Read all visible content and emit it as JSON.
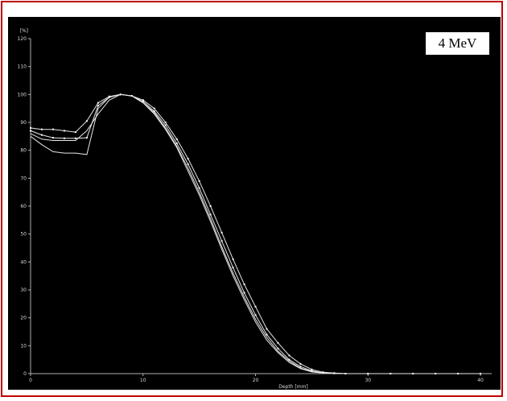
{
  "badge": {
    "label": "4 MeV"
  },
  "chart_data": {
    "type": "line",
    "title": "",
    "xlabel": "Depth [mm]",
    "ylabel": "[%]",
    "xlim": [
      0,
      41
    ],
    "ylim": [
      0,
      120
    ],
    "xticks": [
      0,
      10,
      20,
      30,
      40
    ],
    "yticks": [
      0,
      10,
      20,
      30,
      40,
      50,
      60,
      70,
      80,
      90,
      100,
      110,
      120
    ],
    "grid": false,
    "legend": "none",
    "colors": {
      "background": "#000000",
      "line": "#e6e6e6",
      "axis": "#b0b0b0",
      "frame": "#c00000"
    },
    "series": [
      {
        "x": [
          0,
          1,
          2,
          3,
          4,
          5,
          6,
          7,
          8,
          9,
          10,
          11,
          12,
          13,
          14,
          15,
          16,
          17,
          18,
          19,
          20,
          21,
          22,
          23,
          24,
          25,
          26,
          27,
          28,
          30,
          32,
          34,
          36,
          38,
          40
        ],
        "values": [
          88,
          87.5,
          87.5,
          87,
          86.5,
          90.5,
          97,
          99.3,
          100,
          99.5,
          98,
          95,
          90,
          84,
          77,
          69,
          60,
          50.5,
          41,
          32,
          24,
          16,
          11,
          6.5,
          3.5,
          1.5,
          0.5,
          0.2,
          0,
          0,
          0,
          0,
          0,
          0,
          0
        ],
        "markers": true
      },
      {
        "x": [
          0,
          1,
          2,
          3,
          4,
          5,
          6,
          7,
          8,
          9,
          10,
          11,
          12,
          13,
          14,
          15,
          16,
          17,
          18,
          19,
          20,
          21,
          22,
          23,
          24,
          25,
          26,
          27,
          28,
          30,
          32,
          34,
          36,
          38,
          40
        ],
        "values": [
          87,
          85.5,
          84.5,
          84.3,
          84.3,
          84.5,
          96,
          99,
          100,
          99.5,
          97.5,
          94,
          89,
          82.5,
          75,
          66.5,
          57,
          47.5,
          38,
          29,
          21,
          14,
          9,
          5,
          2.5,
          1,
          0.3,
          0.1,
          0,
          0,
          0,
          0,
          0,
          0,
          0
        ],
        "markers": true
      },
      {
        "x": [
          0,
          1,
          2,
          3,
          4,
          5,
          6,
          7,
          8,
          9,
          10,
          11,
          12,
          13,
          14,
          15,
          16,
          17,
          18,
          19,
          20,
          21,
          22,
          23,
          24,
          25,
          26,
          28,
          30,
          32,
          34,
          36,
          38,
          40
        ],
        "values": [
          86,
          84,
          83.5,
          83.5,
          83.5,
          87,
          93,
          98,
          100,
          99.5,
          97,
          93.5,
          88,
          81.5,
          73.5,
          65,
          55.5,
          45.5,
          36,
          27.5,
          19.5,
          13,
          8,
          4.5,
          2,
          0.8,
          0.2,
          0,
          0,
          0,
          0,
          0,
          0,
          0
        ],
        "markers": false
      },
      {
        "x": [
          0,
          1,
          2,
          3,
          4,
          5,
          6,
          7,
          8,
          9,
          10,
          11,
          12,
          13,
          14,
          15,
          16,
          17,
          18,
          19,
          20,
          21,
          22,
          23,
          24,
          25,
          26,
          28,
          30,
          32,
          34,
          36,
          38,
          40
        ],
        "values": [
          85,
          82,
          79.5,
          79,
          79,
          78.5,
          95,
          99,
          100,
          99.5,
          97,
          93,
          87.5,
          81,
          72.5,
          64,
          54.5,
          44.5,
          35,
          26.5,
          18.5,
          12,
          7.5,
          4,
          1.8,
          0.6,
          0.2,
          0,
          0,
          0,
          0,
          0,
          0,
          0
        ],
        "markers": false
      }
    ]
  }
}
